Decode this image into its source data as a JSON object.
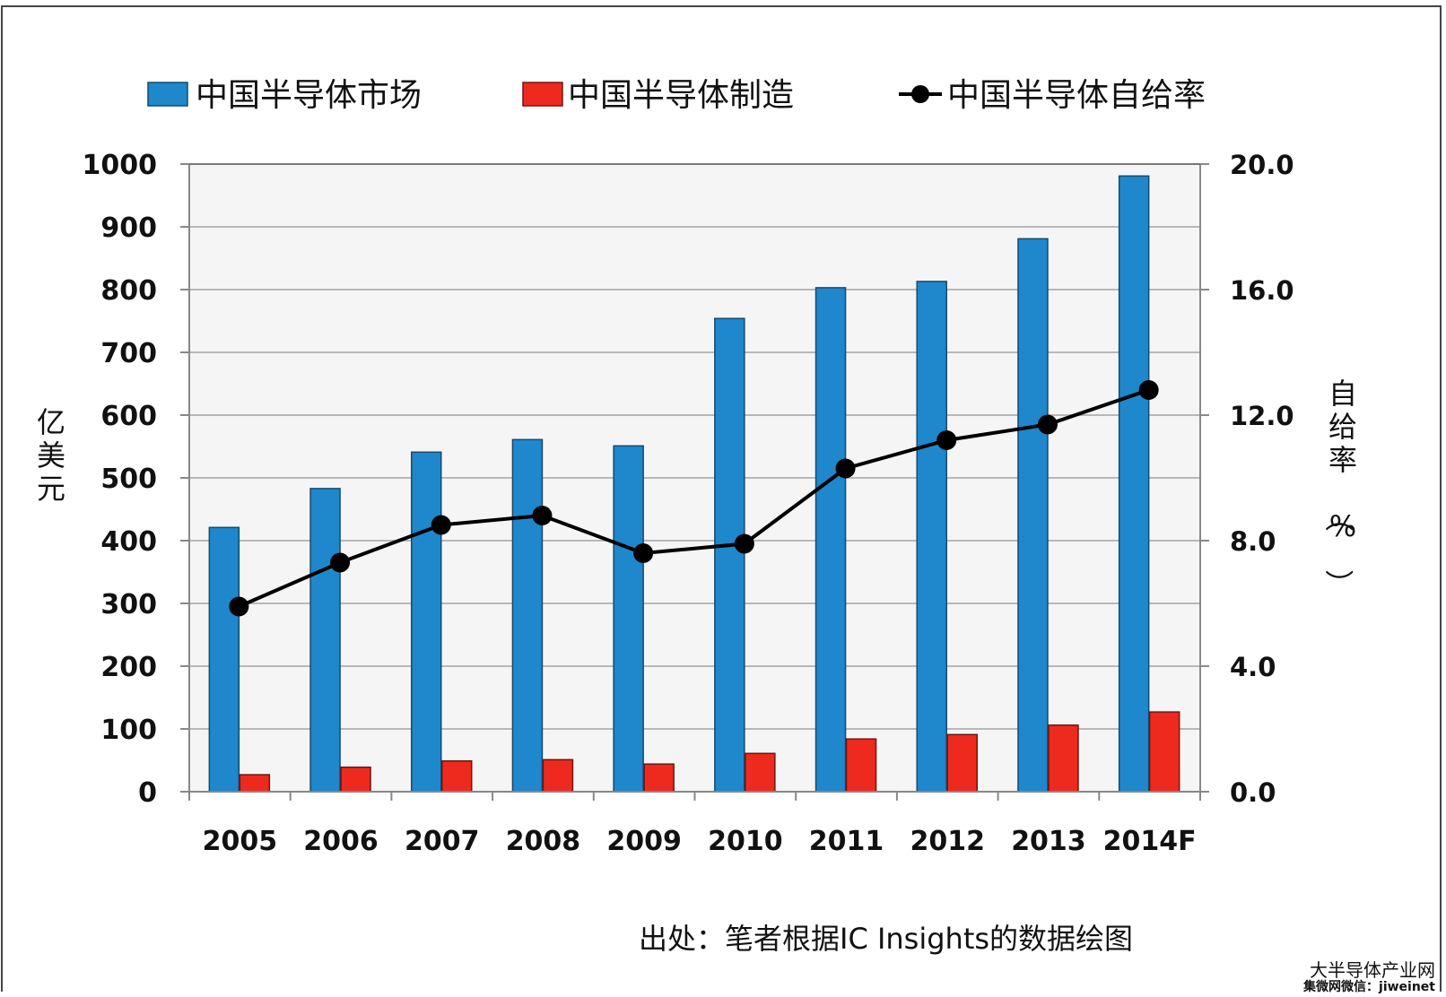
{
  "chart_data": {
    "type": "bar",
    "title": "",
    "categories": [
      "2005",
      "2006",
      "2007",
      "2008",
      "2009",
      "2010",
      "2011",
      "2012",
      "2013",
      "2014F"
    ],
    "series": [
      {
        "name": "中国半导体市场",
        "kind": "bar",
        "axis": "left",
        "color": "#1f87cc",
        "values": [
          421,
          483,
          541,
          561,
          551,
          754,
          803,
          813,
          881,
          981
        ]
      },
      {
        "name": "中国半导体制造",
        "kind": "bar",
        "axis": "left",
        "color": "#ee2a1f",
        "values": [
          27,
          39,
          49,
          51,
          44,
          61,
          84,
          91,
          106,
          127
        ]
      },
      {
        "name": "中国半导体自给率",
        "kind": "line",
        "axis": "right",
        "color": "#000000",
        "values": [
          5.9,
          7.3,
          8.5,
          8.8,
          7.6,
          7.9,
          10.3,
          11.2,
          11.7,
          12.8
        ]
      }
    ],
    "ylabel": "亿美元",
    "ylabel_right": "自给率（%）",
    "ylim": [
      0,
      1000
    ],
    "ylim_right": [
      0,
      20
    ],
    "yticks": [
      "0",
      "100",
      "200",
      "300",
      "400",
      "500",
      "600",
      "700",
      "800",
      "900",
      "1000"
    ],
    "yticks_right": [
      "0.0",
      "4.0",
      "8.0",
      "12.0",
      "16.0",
      "20.0"
    ],
    "grid": true,
    "legend_position": "top"
  },
  "source_note": "出处：笔者根据IC Insights的数据绘图",
  "watermark": {
    "site": "大半导体产业网",
    "wechat": "集微网微信：jiweinet"
  }
}
